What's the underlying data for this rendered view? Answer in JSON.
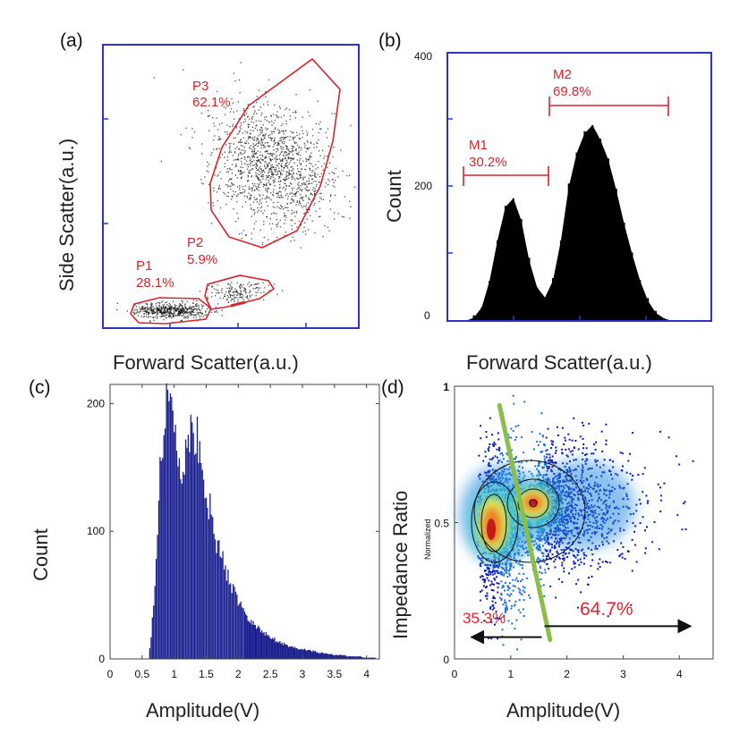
{
  "chart_data": [
    {
      "panel": "(a)",
      "type": "scatter",
      "xlabel": "Forward Scatter(a.u.)",
      "ylabel": "Side Scatter(a.u.)",
      "gates": [
        {
          "name": "P1",
          "percent": "28.1%"
        },
        {
          "name": "P2",
          "percent": "5.9%"
        },
        {
          "name": "P3",
          "percent": "62.1%"
        }
      ],
      "colors": {
        "frame": "#2a34c8",
        "gate": "#d8242c",
        "points": "#111111"
      }
    },
    {
      "panel": "(b)",
      "type": "bar",
      "xlabel": "Forward Scatter(a.u.)",
      "ylabel": "Count",
      "ylim": [
        0,
        400
      ],
      "yticks": [
        "400",
        "200",
        "0"
      ],
      "markers": [
        {
          "name": "M1",
          "percent": "30.2%"
        },
        {
          "name": "M2",
          "percent": "69.8%"
        }
      ],
      "x": [
        0.07,
        0.1,
        0.13,
        0.16,
        0.19,
        0.22,
        0.25,
        0.28,
        0.31,
        0.34,
        0.37,
        0.4,
        0.43,
        0.46,
        0.49,
        0.52,
        0.55,
        0.58,
        0.61,
        0.64,
        0.67,
        0.7,
        0.73,
        0.76,
        0.79,
        0.82,
        0.85,
        0.88,
        0.91
      ],
      "values": [
        0,
        5,
        20,
        60,
        120,
        170,
        183,
        150,
        90,
        50,
        35,
        60,
        120,
        200,
        250,
        280,
        292,
        270,
        240,
        195,
        145,
        100,
        60,
        30,
        12,
        4,
        0,
        0,
        0
      ]
    },
    {
      "panel": "(c)",
      "type": "bar",
      "xlabel": "Amplitude(V)",
      "ylabel": "Count",
      "xlim": [
        0,
        4.2
      ],
      "ylim": [
        0,
        215
      ],
      "xticks": [
        "0",
        "0.5",
        "1",
        "1.5",
        "2",
        "2.5",
        "3",
        "3.5",
        "4"
      ],
      "yticks": [
        "200",
        "100",
        "0"
      ],
      "x": [
        0.62,
        0.66,
        0.7,
        0.74,
        0.78,
        0.82,
        0.86,
        0.9,
        0.94,
        0.98,
        1.02,
        1.06,
        1.1,
        1.14,
        1.18,
        1.22,
        1.26,
        1.3,
        1.34,
        1.38,
        1.42,
        1.46,
        1.5,
        1.54,
        1.58,
        1.62,
        1.66,
        1.7,
        1.74,
        1.78,
        1.82,
        1.86,
        1.9,
        1.94,
        1.98,
        2.02,
        2.06,
        2.1,
        2.15,
        2.2,
        2.25,
        2.3,
        2.35,
        2.4,
        2.45,
        2.5,
        2.55,
        2.6,
        2.65,
        2.7,
        2.75,
        2.8,
        2.85,
        2.9,
        2.95,
        3.0,
        3.05,
        3.1,
        3.15,
        3.2,
        3.25,
        3.3,
        3.35,
        3.4,
        3.45,
        3.5,
        3.55,
        3.6,
        3.65,
        3.7,
        3.75,
        3.8,
        3.85,
        3.9,
        3.95,
        4.0,
        4.05,
        4.1,
        4.15
      ],
      "values": [
        8,
        30,
        62,
        102,
        150,
        172,
        195,
        208,
        200,
        185,
        172,
        158,
        148,
        150,
        160,
        168,
        175,
        177,
        174,
        168,
        158,
        148,
        132,
        122,
        112,
        100,
        92,
        86,
        80,
        73,
        68,
        63,
        57,
        53,
        49,
        45,
        41,
        37,
        33,
        30,
        28,
        25,
        22,
        20,
        19,
        17,
        16,
        14,
        13,
        12,
        11,
        10,
        9,
        9,
        8,
        8,
        7,
        7,
        6,
        6,
        5,
        5,
        4,
        4,
        4,
        3,
        3,
        3,
        3,
        2,
        2,
        2,
        2,
        2,
        1,
        1,
        1,
        1,
        1
      ]
    },
    {
      "panel": "(d)",
      "type": "scatter",
      "xlabel": "Amplitude(V)",
      "ylabel": "Impedance Ratio",
      "ylabel_small": "Normalized",
      "xlim": [
        0,
        4.6
      ],
      "ylim": [
        0,
        1
      ],
      "xticks": [
        "0",
        "1",
        "2",
        "3",
        "4"
      ],
      "yticks": [
        "1",
        "0.5",
        "0"
      ],
      "clusters": [
        {
          "x": 0.8,
          "y": 0.48
        },
        {
          "x": 1.45,
          "y": 0.56
        }
      ],
      "divider": {
        "from": [
          0.8,
          0.93
        ],
        "to": [
          1.7,
          0.07
        ],
        "color": "#8bbf4a"
      },
      "percent_left": "35.3%",
      "percent_right": "64.7%",
      "arrow_left": {
        "from": 1.55,
        "to": 0.3,
        "y": 0.08
      },
      "arrow_right": {
        "from": 1.6,
        "to": 4.2,
        "y": 0.12
      }
    }
  ]
}
